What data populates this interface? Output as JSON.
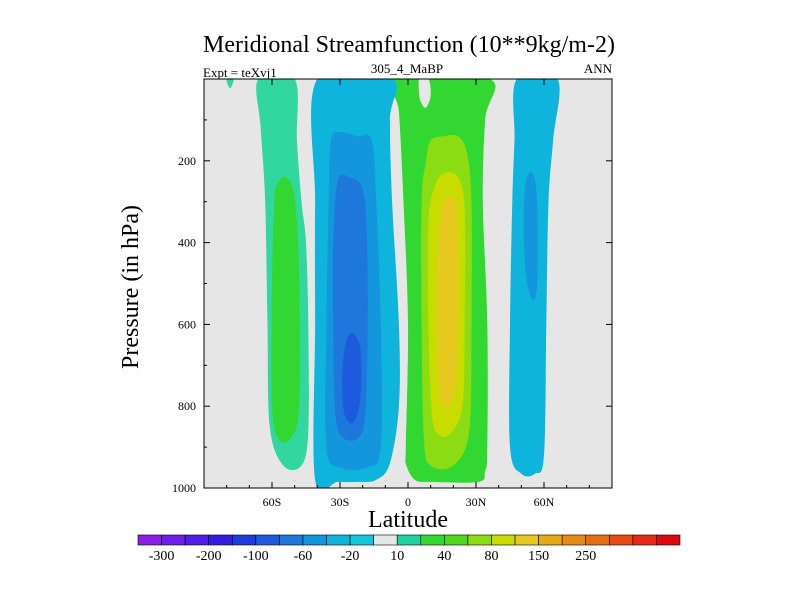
{
  "chart_data": {
    "type": "contour",
    "title": "Meridional Streamfunction (10**9kg/m-2)",
    "left_label": "Expt = teXvj1",
    "center_label": "305_4_MaBP",
    "right_label": "ANN",
    "xlabel": "Latitude",
    "ylabel": "Pressure (in hPa)",
    "xlim": [
      -90,
      90
    ],
    "ylim": [
      1000,
      0
    ],
    "xticks": [
      {
        "value": -60,
        "label": "60S"
      },
      {
        "value": -30,
        "label": "30S"
      },
      {
        "value": 0,
        "label": "0"
      },
      {
        "value": 30,
        "label": "30N"
      },
      {
        "value": 60,
        "label": "60N"
      }
    ],
    "yticks": [
      {
        "value": 200,
        "label": "200"
      },
      {
        "value": 400,
        "label": "400"
      },
      {
        "value": 600,
        "label": "600"
      },
      {
        "value": 800,
        "label": "800"
      },
      {
        "value": 1000,
        "label": "1000"
      }
    ],
    "background_color": "#e6e6e6",
    "regions": [
      {
        "name": "cell-north-hadley-outer",
        "value": 40,
        "color": "#32d732",
        "lat": [
          [
            -6,
            0
          ],
          [
            -4,
            80
          ],
          [
            -2,
            300
          ],
          [
            0,
            600
          ],
          [
            -1,
            900
          ],
          [
            -1,
            940
          ],
          [
            3,
            980
          ],
          [
            10,
            985
          ],
          [
            31,
            985
          ],
          [
            34,
            960
          ],
          [
            35,
            900
          ],
          [
            35,
            600
          ],
          [
            33,
            300
          ],
          [
            34,
            100
          ],
          [
            36,
            0
          ]
        ]
      },
      {
        "name": "cell-north-hadley-60",
        "value": 60,
        "color": "#8cdc14",
        "lat": [
          [
            8,
            200
          ],
          [
            10,
            150
          ],
          [
            16,
            140
          ],
          [
            22,
            140
          ],
          [
            26,
            180
          ],
          [
            28,
            300
          ],
          [
            28,
            600
          ],
          [
            27,
            860
          ],
          [
            20,
            945
          ],
          [
            10,
            945
          ],
          [
            7,
            880
          ],
          [
            6,
            600
          ],
          [
            6,
            300
          ]
        ]
      },
      {
        "name": "cell-north-hadley-80",
        "value": 80,
        "color": "#c8dc00",
        "lat": [
          [
            12,
            260
          ],
          [
            16,
            230
          ],
          [
            22,
            240
          ],
          [
            25,
            320
          ],
          [
            25,
            600
          ],
          [
            24,
            800
          ],
          [
            18,
            870
          ],
          [
            12,
            860
          ],
          [
            10,
            780
          ],
          [
            9,
            600
          ],
          [
            9,
            350
          ]
        ]
      },
      {
        "name": "cell-north-hadley-core",
        "value": 100,
        "color": "#e6c81e",
        "lat": [
          [
            15,
            310
          ],
          [
            18,
            290
          ],
          [
            21,
            300
          ],
          [
            22,
            400
          ],
          [
            22,
            600
          ],
          [
            21,
            760
          ],
          [
            17,
            800
          ],
          [
            14,
            780
          ],
          [
            13,
            650
          ],
          [
            13,
            450
          ]
        ]
      },
      {
        "name": "cell-north-hadley-notch",
        "value": 10,
        "color": "#e6e6e6",
        "lat": [
          [
            5,
            0
          ],
          [
            9,
            0
          ],
          [
            10,
            40
          ],
          [
            8,
            70
          ],
          [
            6,
            60
          ],
          [
            5,
            40
          ]
        ]
      },
      {
        "name": "cell-south-hadley-outer",
        "value": -20,
        "color": "#0fb4dc",
        "lat": [
          [
            -40,
            0
          ],
          [
            -41,
            300
          ],
          [
            -41,
            600
          ],
          [
            -41,
            980
          ],
          [
            -31,
            985
          ],
          [
            -21,
            985
          ],
          [
            -14,
            980
          ],
          [
            -8,
            940
          ],
          [
            -4,
            800
          ],
          [
            -4,
            600
          ],
          [
            -7,
            300
          ],
          [
            -8,
            100
          ],
          [
            -7,
            0
          ]
        ]
      },
      {
        "name": "cell-south-hadley-40",
        "value": -40,
        "color": "#1496dc",
        "lat": [
          [
            -34,
            150
          ],
          [
            -30,
            130
          ],
          [
            -22,
            140
          ],
          [
            -16,
            150
          ],
          [
            -14,
            300
          ],
          [
            -12,
            600
          ],
          [
            -12,
            900
          ],
          [
            -18,
            950
          ],
          [
            -30,
            950
          ],
          [
            -36,
            900
          ],
          [
            -36,
            600
          ],
          [
            -35,
            300
          ]
        ]
      },
      {
        "name": "cell-south-hadley-60",
        "value": -60,
        "color": "#1e78dc",
        "lat": [
          [
            -31,
            250
          ],
          [
            -26,
            240
          ],
          [
            -20,
            270
          ],
          [
            -18,
            400
          ],
          [
            -18,
            700
          ],
          [
            -20,
            860
          ],
          [
            -28,
            880
          ],
          [
            -32,
            820
          ],
          [
            -33,
            600
          ],
          [
            -33,
            400
          ]
        ]
      },
      {
        "name": "cell-south-hadley-core",
        "value": -80,
        "color": "#1e5adc",
        "lat": [
          [
            -28,
            660
          ],
          [
            -25,
            620
          ],
          [
            -21,
            660
          ],
          [
            -21,
            780
          ],
          [
            -24,
            840
          ],
          [
            -28,
            820
          ],
          [
            -29,
            740
          ]
        ]
      },
      {
        "name": "cell-equatorial-wedge",
        "value": 10,
        "color": "#e6e6e6",
        "lat": [
          [
            -1,
            940
          ],
          [
            -2,
            800
          ],
          [
            -2,
            640
          ],
          [
            0,
            600
          ],
          [
            -1,
            900
          ]
        ]
      },
      {
        "name": "cell-south-ferrel",
        "value": 20,
        "color": "#32d7a0",
        "lat": [
          [
            -66,
            0
          ],
          [
            -65,
            120
          ],
          [
            -63,
            300
          ],
          [
            -62,
            600
          ],
          [
            -61,
            850
          ],
          [
            -55,
            945
          ],
          [
            -47,
            945
          ],
          [
            -44,
            860
          ],
          [
            -44,
            600
          ],
          [
            -45,
            400
          ],
          [
            -47,
            300
          ],
          [
            -49,
            150
          ],
          [
            -50,
            0
          ]
        ]
      },
      {
        "name": "cell-south-ferrel-core",
        "value": 40,
        "color": "#32d732",
        "lat": [
          [
            -58,
            260
          ],
          [
            -54,
            240
          ],
          [
            -50,
            290
          ],
          [
            -48,
            480
          ],
          [
            -48,
            800
          ],
          [
            -52,
            880
          ],
          [
            -57,
            880
          ],
          [
            -60,
            800
          ],
          [
            -60,
            500
          ],
          [
            -59,
            300
          ]
        ]
      },
      {
        "name": "cell-south-polar-sliver",
        "value": 20,
        "color": "#32d7a0",
        "lat": [
          [
            -80,
            0
          ],
          [
            -77,
            0
          ],
          [
            -78,
            20
          ],
          [
            -79,
            20
          ]
        ]
      },
      {
        "name": "cell-north-ferrel",
        "value": -20,
        "color": "#0fb4dc",
        "lat": [
          [
            48,
            0
          ],
          [
            47,
            150
          ],
          [
            46,
            300
          ],
          [
            45,
            600
          ],
          [
            45,
            900
          ],
          [
            50,
            965
          ],
          [
            56,
            965
          ],
          [
            60,
            920
          ],
          [
            61,
            600
          ],
          [
            62,
            300
          ],
          [
            64,
            150
          ],
          [
            66,
            0
          ]
        ]
      },
      {
        "name": "cell-north-ferrel-core",
        "value": -40,
        "color": "#1496dc",
        "lat": [
          [
            52,
            250
          ],
          [
            55,
            230
          ],
          [
            57,
            300
          ],
          [
            57,
            500
          ],
          [
            55,
            540
          ],
          [
            52,
            480
          ],
          [
            51,
            350
          ]
        ]
      }
    ],
    "colorbar": {
      "levels": [
        "-300",
        "-200",
        "-100",
        "-60",
        "-20",
        "10",
        "40",
        "80",
        "150",
        "250"
      ],
      "colors": [
        "#8c1ee6",
        "#6e1ee6",
        "#501ee6",
        "#321edc",
        "#1e3cdc",
        "#1e5adc",
        "#1e78dc",
        "#1496dc",
        "#0fb4dc",
        "#0fc8dc",
        "#e6e6e6",
        "#1ed2a0",
        "#32d732",
        "#50d71e",
        "#8cdc14",
        "#c8dc00",
        "#e6c81e",
        "#e6aa14",
        "#e68c14",
        "#e66e14",
        "#e64b14",
        "#e62814",
        "#dc0a0a"
      ]
    }
  }
}
